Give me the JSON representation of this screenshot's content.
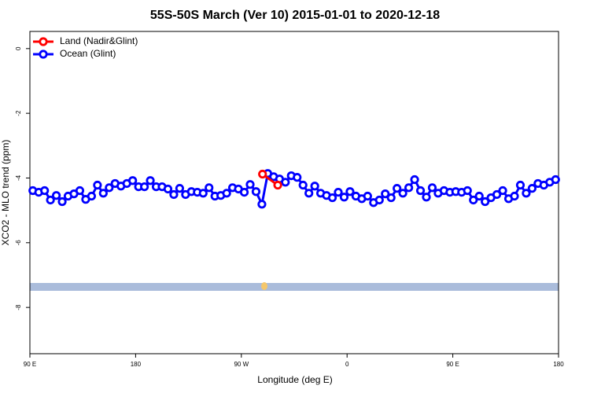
{
  "chart_data": {
    "type": "line",
    "title": "55S-50S March (Ver 10)   2015-01-01 to 2020-12-18",
    "xlabel": "Longitude (deg E)",
    "ylabel": "XCO2 - MLO trend (ppm)",
    "xlim": [
      90,
      540
    ],
    "xticks": [
      {
        "value": 90,
        "label": "90 E"
      },
      180,
      {
        "value": 270,
        "label": "90 W"
      },
      {
        "value": 360,
        "label": "0"
      },
      {
        "value": 450,
        "label": "90 E"
      },
      {
        "value": 540,
        "label": "180"
      }
    ],
    "ylim": [
      -9.43,
      0.53
    ],
    "yticks": [
      0,
      -2,
      -4,
      -6,
      -8
    ],
    "legend": "top-left",
    "series": [
      {
        "name": "Land (Nadir&Glint)",
        "color": "#ff0000",
        "x": [
          288,
          301
        ],
        "values": [
          -3.88,
          -4.22
        ]
      },
      {
        "name": "Ocean (Glint)",
        "color": "#0000ff",
        "x": [
          92.5,
          97.5,
          102.5,
          107.5,
          112.5,
          117.5,
          122.5,
          127.5,
          132.5,
          137.5,
          142.5,
          147.5,
          152.5,
          157.5,
          162.5,
          167.5,
          172.5,
          177.5,
          182.5,
          187.5,
          192.5,
          197.5,
          202.5,
          207.5,
          212.5,
          217.5,
          222.5,
          227.5,
          232.5,
          237.5,
          242.5,
          247.5,
          252.5,
          257.5,
          262.5,
          267.5,
          272.5,
          277.5,
          282.5,
          287.5,
          292.5,
          297.5,
          302.5,
          307.5,
          312.5,
          317.5,
          322.5,
          327.5,
          332.5,
          337.5,
          342.5,
          347.5,
          352.5,
          357.5,
          362.5,
          367.5,
          372.5,
          377.5,
          382.5,
          387.5,
          392.5,
          397.5,
          402.5,
          407.5,
          412.5,
          417.5,
          422.5,
          427.5,
          432.5,
          437.5,
          442.5,
          447.5,
          452.5,
          457.5,
          462.5,
          467.5,
          472.5,
          477.5,
          482.5,
          487.5,
          492.5,
          497.5,
          502.5,
          507.5,
          512.5,
          517.5,
          522.5,
          527.5,
          532.5,
          537.5
        ],
        "values": [
          -4.39,
          -4.44,
          -4.39,
          -4.68,
          -4.54,
          -4.73,
          -4.56,
          -4.49,
          -4.39,
          -4.66,
          -4.56,
          -4.22,
          -4.47,
          -4.3,
          -4.17,
          -4.25,
          -4.17,
          -4.08,
          -4.27,
          -4.27,
          -4.08,
          -4.27,
          -4.27,
          -4.34,
          -4.51,
          -4.32,
          -4.51,
          -4.42,
          -4.44,
          -4.47,
          -4.3,
          -4.56,
          -4.54,
          -4.47,
          -4.3,
          -4.34,
          -4.44,
          -4.2,
          -4.42,
          -4.81,
          -3.86,
          -3.96,
          -4.03,
          -4.13,
          -3.93,
          -3.98,
          -4.22,
          -4.47,
          -4.25,
          -4.47,
          -4.54,
          -4.61,
          -4.44,
          -4.59,
          -4.42,
          -4.56,
          -4.64,
          -4.56,
          -4.76,
          -4.68,
          -4.49,
          -4.61,
          -4.32,
          -4.47,
          -4.3,
          -4.05,
          -4.39,
          -4.59,
          -4.3,
          -4.47,
          -4.39,
          -4.44,
          -4.42,
          -4.44,
          -4.39,
          -4.68,
          -4.56,
          -4.73,
          -4.61,
          -4.51,
          -4.39,
          -4.64,
          -4.56,
          -4.22,
          -4.47,
          -4.32,
          -4.17,
          -4.22,
          -4.13,
          -4.05
        ]
      }
    ]
  }
}
